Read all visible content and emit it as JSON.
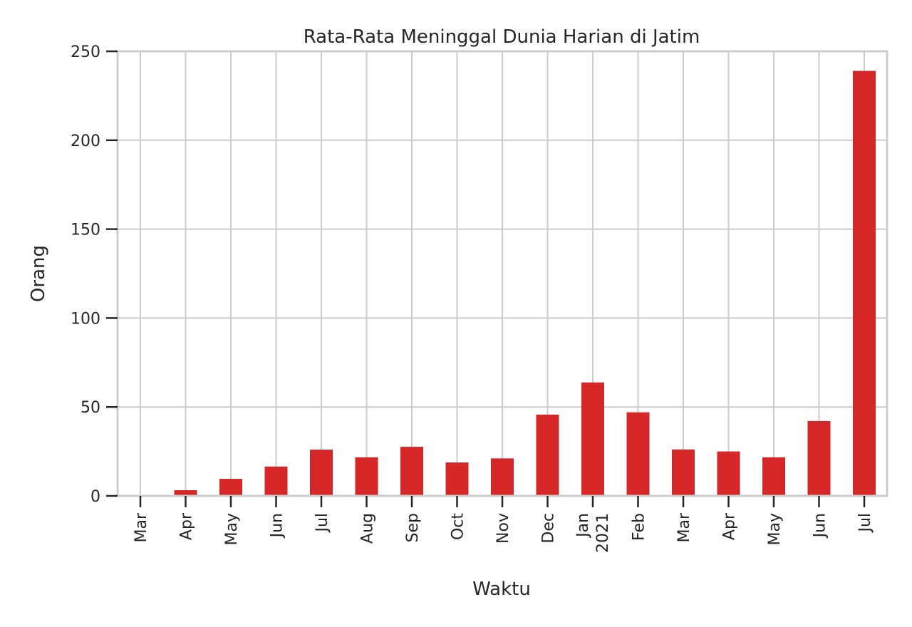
{
  "chart_data": {
    "type": "bar",
    "title": "Rata-Rata Meninggal Dunia Harian di Jatim",
    "xlabel": "Waktu",
    "ylabel": "Orang",
    "ylim": [
      0,
      250
    ],
    "yticks": [
      "0",
      "50",
      "100",
      "150",
      "200",
      "250"
    ],
    "grid": true,
    "legend": "none",
    "bar_color": "#d62728",
    "categories": [
      {
        "line1": "Mar",
        "line2": ""
      },
      {
        "line1": "Apr",
        "line2": ""
      },
      {
        "line1": "May",
        "line2": ""
      },
      {
        "line1": "Jun",
        "line2": ""
      },
      {
        "line1": "Jul",
        "line2": ""
      },
      {
        "line1": "Aug",
        "line2": ""
      },
      {
        "line1": "Sep",
        "line2": ""
      },
      {
        "line1": "Oct",
        "line2": ""
      },
      {
        "line1": "Nov",
        "line2": ""
      },
      {
        "line1": "Dec",
        "line2": ""
      },
      {
        "line1": "Jan",
        "line2": "2021"
      },
      {
        "line1": "Feb",
        "line2": ""
      },
      {
        "line1": "Mar",
        "line2": ""
      },
      {
        "line1": "Apr",
        "line2": ""
      },
      {
        "line1": "May",
        "line2": ""
      },
      {
        "line1": "Jun",
        "line2": ""
      },
      {
        "line1": "Jul",
        "line2": ""
      }
    ],
    "values": [
      0.5,
      3.2,
      9.6,
      16.5,
      26.0,
      21.7,
      27.6,
      18.8,
      21.1,
      45.7,
      63.8,
      47.0,
      26.1,
      25.0,
      21.7,
      42.1,
      239.0
    ]
  }
}
